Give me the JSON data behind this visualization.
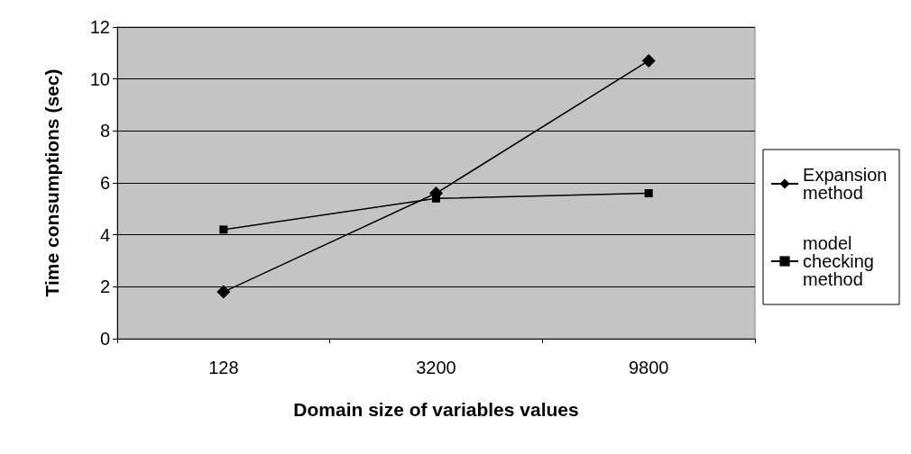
{
  "chart_data": {
    "type": "line",
    "xlabel": "Domain size of variables values",
    "ylabel": "Time consumptions (sec)",
    "categories": [
      "128",
      "3200",
      "9800"
    ],
    "series": [
      {
        "name": "Expansion method",
        "color": "#000000",
        "marker": "diamond",
        "values": [
          1.8,
          5.6,
          10.7
        ]
      },
      {
        "name": "model checking method",
        "color": "#000000",
        "marker": "square",
        "values": [
          4.2,
          5.4,
          5.6
        ]
      }
    ],
    "ylim": [
      0,
      12
    ],
    "yticks": [
      0,
      2,
      4,
      6,
      8,
      10,
      12
    ],
    "grid": "y",
    "legend": "right",
    "line_style": "solid"
  }
}
